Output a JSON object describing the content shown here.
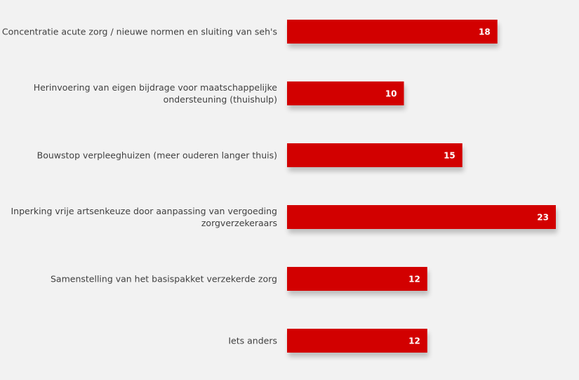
{
  "chart_data": {
    "type": "bar",
    "orientation": "horizontal",
    "categories": [
      [
        "Concentratie acute zorg / nieuwe normen en sluiting van seh's"
      ],
      [
        "Herinvoering van eigen bijdrage voor maatschappelijke",
        "ondersteuning (thuishulp)"
      ],
      [
        "Bouwstop verpleeghuizen (meer ouderen langer thuis)"
      ],
      [
        "Inperking vrije artsenkeuze door aanpassing van vergoeding",
        "zorgverzekeraars"
      ],
      [
        "Samenstelling van het basispakket verzekerde zorg"
      ],
      [
        "Iets anders"
      ]
    ],
    "values": [
      18,
      10,
      15,
      23,
      12,
      12
    ],
    "data_labels": [
      "18",
      "10",
      "15",
      "23",
      "12",
      "12"
    ],
    "bar_color": "#d20000",
    "background_color": "#f2f2f2",
    "xlim": [
      0,
      24
    ],
    "grid": false,
    "legend": "none"
  }
}
